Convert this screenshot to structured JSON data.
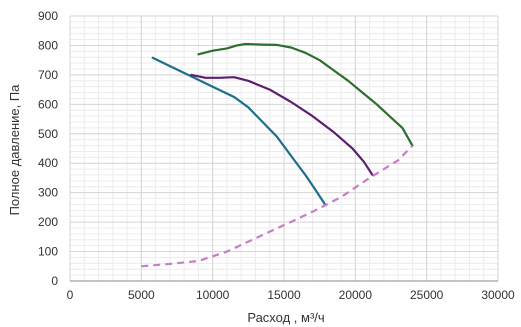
{
  "chart_data": {
    "type": "line",
    "xlabel": "Расход , м³/ч",
    "ylabel": "Полное давление, Па",
    "xlim": [
      0,
      30000
    ],
    "ylim": [
      0,
      900
    ],
    "x_ticks": [
      "0",
      "5000",
      "10000",
      "15000",
      "20000",
      "25000",
      "30000"
    ],
    "y_ticks": [
      "0",
      "100",
      "200",
      "300",
      "400",
      "500",
      "600",
      "700",
      "800",
      "900"
    ],
    "grid": true,
    "minor_grid": true,
    "legend": "none",
    "series": [
      {
        "color": "#1f6e8c",
        "style": "solid",
        "points": [
          [
            5800,
            758
          ],
          [
            7000,
            730
          ],
          [
            8500,
            695
          ],
          [
            10000,
            660
          ],
          [
            11500,
            625
          ],
          [
            12500,
            590
          ],
          [
            13500,
            540
          ],
          [
            14500,
            490
          ],
          [
            15500,
            425
          ],
          [
            16500,
            360
          ],
          [
            17200,
            310
          ],
          [
            17900,
            258
          ]
        ]
      },
      {
        "color": "#5c1f73",
        "style": "solid",
        "points": [
          [
            8500,
            700
          ],
          [
            9500,
            690
          ],
          [
            10500,
            690
          ],
          [
            11500,
            692
          ],
          [
            12500,
            680
          ],
          [
            14000,
            650
          ],
          [
            15500,
            608
          ],
          [
            17000,
            560
          ],
          [
            18500,
            505
          ],
          [
            19800,
            450
          ],
          [
            20600,
            405
          ],
          [
            21200,
            360
          ]
        ]
      },
      {
        "color": "#2e6e2e",
        "style": "solid",
        "points": [
          [
            9000,
            770
          ],
          [
            10000,
            782
          ],
          [
            11000,
            790
          ],
          [
            11700,
            800
          ],
          [
            12300,
            805
          ],
          [
            13500,
            803
          ],
          [
            14500,
            802
          ],
          [
            15500,
            793
          ],
          [
            16500,
            775
          ],
          [
            17500,
            750
          ],
          [
            18500,
            715
          ],
          [
            19500,
            680
          ],
          [
            20500,
            640
          ],
          [
            21500,
            600
          ],
          [
            22500,
            555
          ],
          [
            23300,
            520
          ],
          [
            24000,
            460
          ]
        ]
      },
      {
        "color": "#c77dc7",
        "style": "dashed",
        "points": [
          [
            5000,
            50
          ],
          [
            7000,
            58
          ],
          [
            9000,
            68
          ],
          [
            11000,
            100
          ],
          [
            13000,
            145
          ],
          [
            15000,
            190
          ],
          [
            17000,
            235
          ],
          [
            19000,
            285
          ],
          [
            21000,
            350
          ],
          [
            23000,
            410
          ],
          [
            24000,
            460
          ]
        ]
      }
    ]
  }
}
